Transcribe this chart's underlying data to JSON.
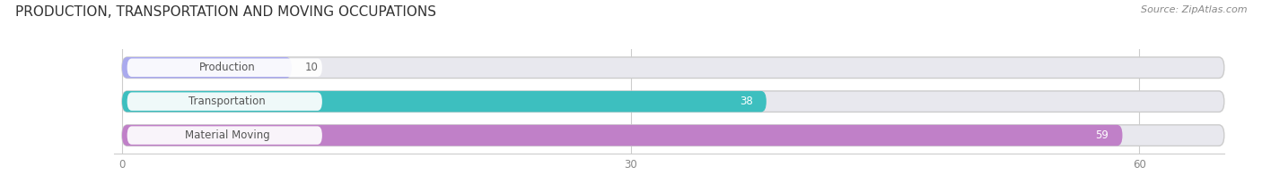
{
  "title": "PRODUCTION, TRANSPORTATION AND MOVING OCCUPATIONS",
  "source": "Source: ZipAtlas.com",
  "categories": [
    "Material Moving",
    "Transportation",
    "Production"
  ],
  "values": [
    59,
    38,
    10
  ],
  "bar_colors": [
    "#c080c8",
    "#3dbfbf",
    "#aaaaee"
  ],
  "bar_bg_color": "#e8e8ee",
  "max_value": 65,
  "display_max": 60,
  "xticks": [
    0,
    30,
    60
  ],
  "title_fontsize": 11,
  "label_fontsize": 8.5,
  "value_fontsize": 8.5,
  "background_color": "#ffffff",
  "bar_height": 0.62,
  "bar_gap": 0.15
}
